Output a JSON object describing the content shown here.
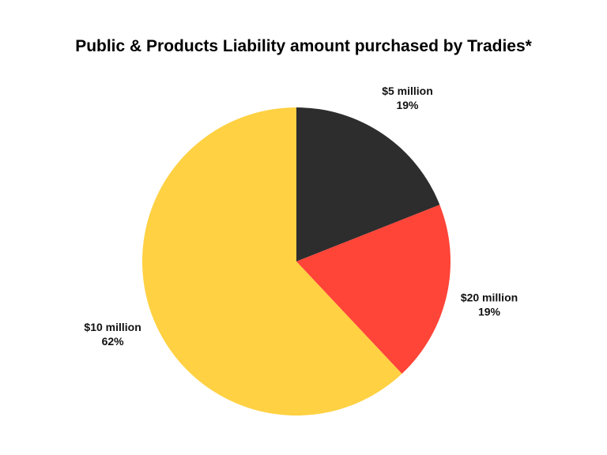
{
  "chart_data": {
    "type": "pie",
    "title": "Public & Products Liability amount purchased by Tradies*",
    "slices": [
      {
        "label": "$5 million",
        "value": 19,
        "value_label": "19%",
        "color": "#2d2d2d"
      },
      {
        "label": "$20 million",
        "value": 19,
        "value_label": "19%",
        "color": "#ff4438"
      },
      {
        "label": "$10 million",
        "value": 62,
        "value_label": "62%",
        "color": "#ffd143"
      }
    ],
    "start_angle": "12 o'clock",
    "direction": "clockwise",
    "background": "#ffffff"
  }
}
